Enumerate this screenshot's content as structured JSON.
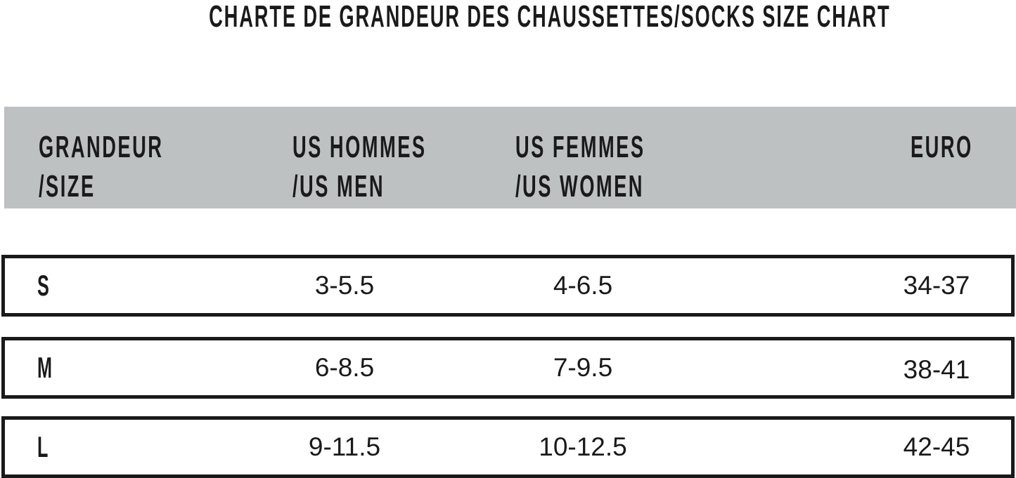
{
  "title": "CHARTE DE GRANDEUR DES CHAUSSETTES/SOCKS SIZE CHART",
  "header": {
    "size": [
      "GRANDEUR",
      "/SIZE"
    ],
    "us_men": [
      "US HOMMES",
      "/US MEN"
    ],
    "us_women": [
      "US FEMMES",
      "/US WOMEN"
    ],
    "euro": [
      "EURO"
    ]
  },
  "rows": [
    {
      "size": "S",
      "us_men": "3-5.5",
      "us_women": "4-6.5",
      "euro": "34-37"
    },
    {
      "size": "M",
      "us_men": "6-8.5",
      "us_women": "7-9.5",
      "euro": "38-41"
    },
    {
      "size": "L",
      "us_men": "9-11.5",
      "us_women": "10-12.5",
      "euro": "42-45"
    }
  ],
  "colors": {
    "header_bg": "#bdc1c2",
    "text": "#1a1a1a"
  }
}
